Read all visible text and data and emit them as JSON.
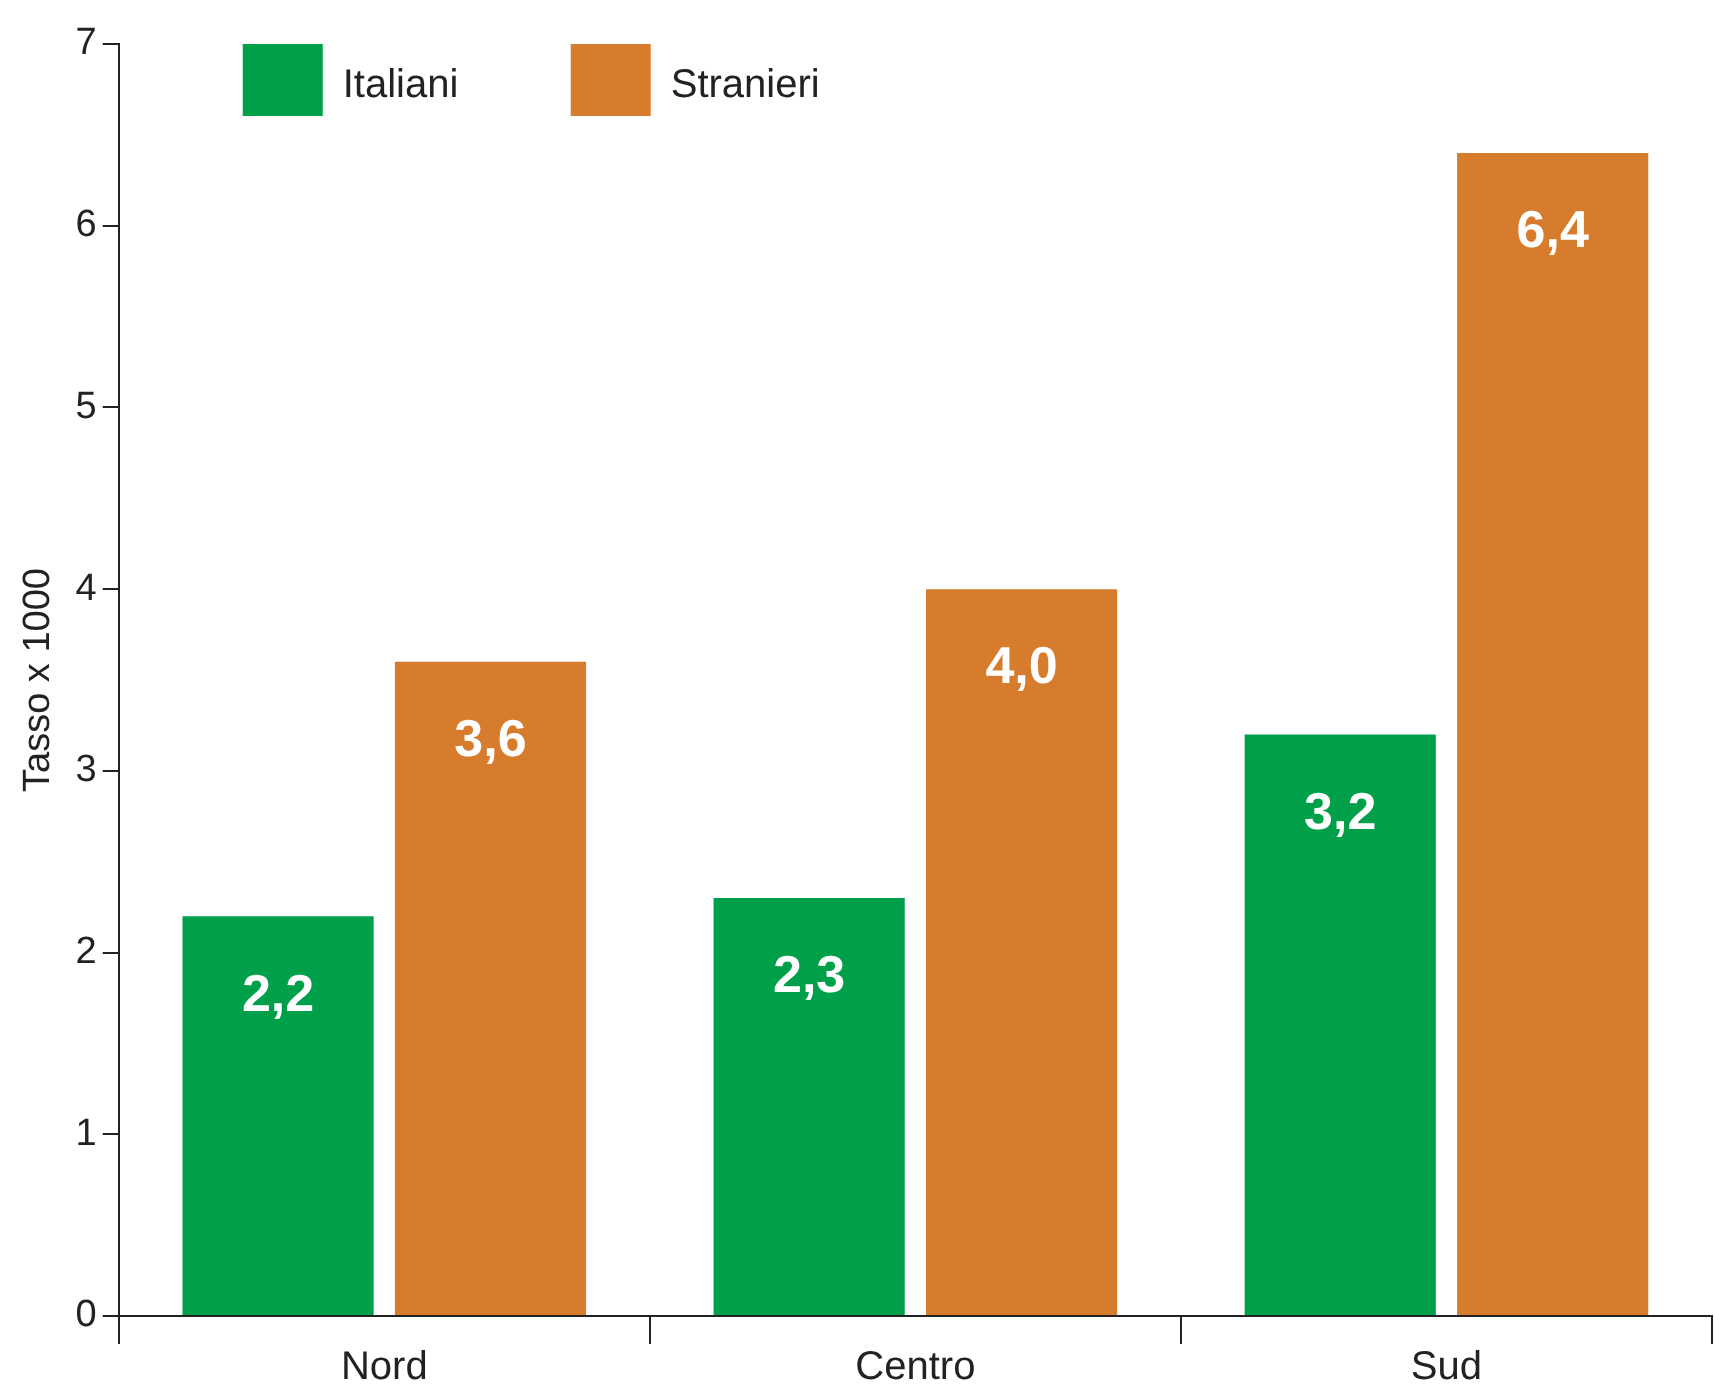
{
  "chart_data": {
    "type": "bar",
    "ylabel": "Tasso x 1000",
    "categories": [
      "Nord",
      "Centro",
      "Sud"
    ],
    "series": [
      {
        "name": "Italiani",
        "color": "#00a04b",
        "values": [
          2.2,
          2.3,
          3.2
        ],
        "value_labels": [
          "2,2",
          "2,3",
          "3,2"
        ]
      },
      {
        "name": "Stranieri",
        "color": "#d77b2c",
        "values": [
          3.6,
          4.0,
          6.4
        ],
        "value_labels": [
          "3,6",
          "4,0",
          "6,4"
        ]
      }
    ],
    "ylim": [
      0,
      7
    ],
    "yticks": [
      0,
      1,
      2,
      3,
      4,
      5,
      6,
      7
    ],
    "grid": false,
    "legend": "top left"
  }
}
